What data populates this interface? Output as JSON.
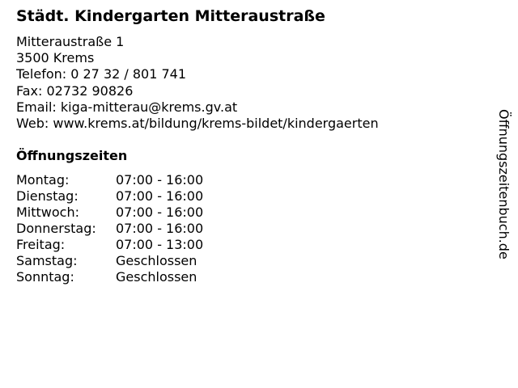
{
  "title": "Städt. Kindergarten Mitteraustraße",
  "info": {
    "street": "Mitteraustraße 1",
    "city": "3500 Krems",
    "phone": "Telefon: 0 27 32 / 801 741",
    "fax": "Fax: 02732 90826",
    "email": "Email: kiga-mitterau@krems.gv.at",
    "web": "Web: www.krems.at/bildung/krems-bildet/kindergaerten"
  },
  "hours_heading": "Öffnungszeiten",
  "hours": [
    {
      "day": "Montag:",
      "time": "07:00 - 16:00"
    },
    {
      "day": "Dienstag:",
      "time": "07:00 - 16:00"
    },
    {
      "day": "Mittwoch:",
      "time": "07:00 - 16:00"
    },
    {
      "day": "Donnerstag:",
      "time": "07:00 - 16:00"
    },
    {
      "day": "Freitag:",
      "time": "07:00 - 13:00"
    },
    {
      "day": "Samstag:",
      "time": "Geschlossen"
    },
    {
      "day": "Sonntag:",
      "time": "Geschlossen"
    }
  ],
  "watermark": "Öffnungszeitenbuch.de"
}
